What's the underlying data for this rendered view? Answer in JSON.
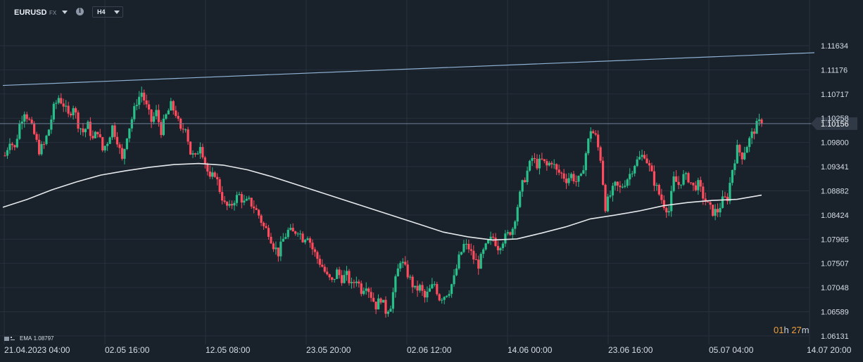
{
  "header": {
    "symbol": "EURUSD",
    "symbol_type": "FX",
    "info_icon": "info-icon",
    "timeframe": "H4"
  },
  "indicator": {
    "label": "EMA",
    "value": "1.08797"
  },
  "countdown": {
    "hours": "01",
    "h_unit": "h",
    "minutes": "27",
    "m_unit": "m"
  },
  "colors": {
    "background": "#19212b",
    "grid": "#28313c",
    "up_candle": "#28c08a",
    "down_candle": "#ff4b5c",
    "ema_line": "#e6e9ec",
    "trend_line": "#8fb2d4",
    "price_line": "#6d8096",
    "price_label_bg": "#2f3a46"
  },
  "chart_data": {
    "type": "candlestick",
    "symbol": "EURUSD",
    "timeframe": "H4",
    "y_ticks": [
      "1.11634",
      "1.11176",
      "1.10717",
      "1.10258",
      "1.09800",
      "1.09341",
      "1.08882",
      "1.08424",
      "1.07965",
      "1.07507",
      "1.07048",
      "1.06589",
      "1.06131"
    ],
    "ylim": [
      1.0605,
      1.1178
    ],
    "x_tick_labels": [
      "21.04.2023  04:00",
      "02.05  16:00",
      "12.05  08:00",
      "23.05  20:00",
      "02.06  12:00",
      "14.06  00:00",
      "23.06  16:00",
      "05.07  04:00",
      "14.07  20:00"
    ],
    "current_price": "1.10156",
    "trend_line": {
      "start": 1.1088,
      "end": 1.115
    },
    "path": [
      1.0955,
      1.0985,
      1.0968,
      1.1015,
      1.104,
      1.102,
      1.0995,
      1.0965,
      1.0975,
      1.1005,
      1.1045,
      1.1065,
      1.1052,
      1.103,
      1.105,
      1.1015,
      1.1,
      1.1012,
      1.0985,
      1.1003,
      1.0965,
      1.0982,
      1.101,
      1.0985,
      1.0945,
      1.0995,
      1.1025,
      1.1058,
      1.1075,
      1.1047,
      1.102,
      1.1037,
      1.1002,
      1.103,
      1.105,
      1.1035,
      1.1,
      1.1012,
      1.096,
      1.095,
      1.0978,
      1.0942,
      1.0908,
      1.0922,
      1.089,
      1.0862,
      1.0855,
      1.0872,
      1.088,
      1.0865,
      1.0868,
      1.0858,
      1.0842,
      1.082,
      1.081,
      1.0785,
      1.077,
      1.0796,
      1.0812,
      1.0808,
      1.0815,
      1.0798,
      1.0805,
      1.0778,
      1.076,
      1.0745,
      1.0725,
      1.0715,
      1.0735,
      1.0722,
      1.0728,
      1.0708,
      1.0722,
      1.07,
      1.0712,
      1.069,
      1.067,
      1.0685,
      1.066,
      1.0672,
      1.0718,
      1.0758,
      1.074,
      1.072,
      1.07,
      1.0705,
      1.0685,
      1.07,
      1.0712,
      1.0685,
      1.069,
      1.07,
      1.0722,
      1.076,
      1.0785,
      1.078,
      1.076,
      1.0748,
      1.0772,
      1.079,
      1.08,
      1.0782,
      1.0795,
      1.0805,
      1.0818,
      1.086,
      1.09,
      1.0925,
      1.095,
      1.0938,
      1.0945,
      1.0935,
      1.0945,
      1.0925,
      1.092,
      1.091,
      1.0918,
      1.0906,
      1.0912,
      1.096,
      1.1005,
      1.099,
      1.095,
      1.0858,
      1.088,
      1.0898,
      1.0892,
      1.0905,
      1.092,
      1.094,
      1.095,
      1.0958,
      1.0932,
      1.0905,
      1.0882,
      1.0862,
      1.085,
      1.091,
      1.09,
      1.0915,
      1.0912,
      1.0895,
      1.09,
      1.0878,
      1.086,
      1.0848,
      1.085,
      1.087,
      1.0875,
      1.093,
      1.0968,
      1.0955,
      1.0975,
      1.0995,
      1.1012,
      1.1022
    ],
    "ema_path": [
      1.0857,
      1.0872,
      1.089,
      1.0905,
      1.0918,
      1.0926,
      1.0933,
      1.0938,
      1.094,
      1.0937,
      1.0928,
      1.0915,
      1.09,
      1.0885,
      1.087,
      1.0855,
      1.084,
      1.0825,
      1.081,
      1.0801,
      1.0795,
      1.0797,
      1.0808,
      1.082,
      1.0835,
      1.0842,
      1.085,
      1.086,
      1.0866,
      1.087,
      1.0872,
      1.088
    ]
  }
}
